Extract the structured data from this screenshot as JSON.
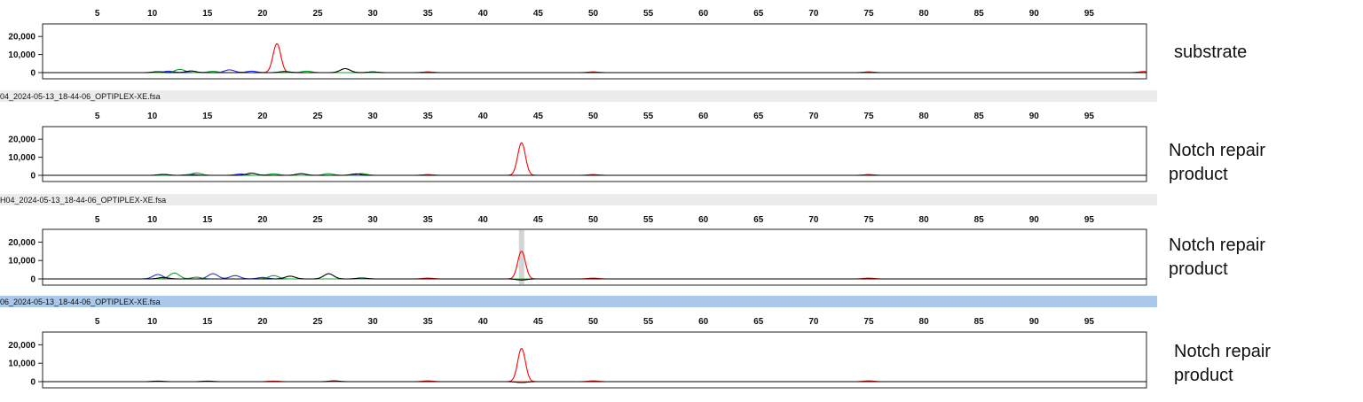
{
  "colors": {
    "baseline": "#e8552e",
    "red_trace": "#ff0000",
    "blue_trace": "#2030e0",
    "green_trace": "#10a030",
    "black_trace": "#000000",
    "selected_bar": "#a9c8ea",
    "plain_bar": "#ececec"
  },
  "chart_data": [
    {
      "type": "line",
      "file_label": "",
      "side_label": "substrate",
      "x_ticks": [
        5,
        10,
        15,
        20,
        25,
        30,
        35,
        40,
        45,
        50,
        55,
        60,
        65,
        70,
        75,
        80,
        85,
        90,
        95
      ],
      "y_ticks": [
        "20,000",
        "10,000",
        "0"
      ],
      "ylim": [
        0,
        25000
      ],
      "series": [
        {
          "color": "red",
          "peaks": [
            [
              21.3,
              16000
            ],
            [
              35,
              400
            ],
            [
              50,
              400
            ],
            [
              75,
              400
            ],
            [
              100,
              600
            ]
          ]
        },
        {
          "color": "blue",
          "peaks": [
            [
              11.5,
              800
            ],
            [
              17,
              1500
            ],
            [
              19,
              800
            ]
          ]
        },
        {
          "color": "green",
          "peaks": [
            [
              12.5,
              1800
            ],
            [
              15.5,
              700
            ],
            [
              24,
              800
            ]
          ]
        },
        {
          "color": "black",
          "peaks": [
            [
              10.5,
              500
            ],
            [
              13.5,
              900
            ],
            [
              22,
              600
            ],
            [
              27.5,
              2200
            ],
            [
              30,
              400
            ]
          ]
        }
      ]
    },
    {
      "type": "line",
      "file_label": "04_2024-05-13_18-44-06_OPTIPLEX-XE.fsa",
      "side_label": "Notch repair\nproduct",
      "x_ticks": [
        5,
        10,
        15,
        20,
        25,
        30,
        35,
        40,
        45,
        50,
        55,
        60,
        65,
        70,
        75,
        80,
        85,
        90,
        95
      ],
      "y_ticks": [
        "20,000",
        "10,000",
        "0"
      ],
      "ylim": [
        0,
        25000
      ],
      "series": [
        {
          "color": "red",
          "peaks": [
            [
              43.5,
              18000
            ],
            [
              35,
              400
            ],
            [
              50,
              400
            ],
            [
              75,
              400
            ]
          ]
        },
        {
          "color": "blue",
          "peaks": [
            [
              13.5,
              500
            ],
            [
              18,
              700
            ]
          ]
        },
        {
          "color": "green",
          "peaks": [
            [
              14,
              1300
            ],
            [
              21,
              800
            ],
            [
              26,
              900
            ],
            [
              29,
              1000
            ]
          ]
        },
        {
          "color": "black",
          "peaks": [
            [
              11,
              500
            ],
            [
              19,
              1200
            ],
            [
              23.5,
              900
            ],
            [
              28.5,
              800
            ]
          ]
        }
      ]
    },
    {
      "type": "line",
      "file_label": "H04_2024-05-13_18-44-06_OPTIPLEX-XE.fsa",
      "side_label": "Notch repair\nproduct",
      "x_ticks": [
        5,
        10,
        15,
        20,
        25,
        30,
        35,
        40,
        45,
        50,
        55,
        60,
        65,
        70,
        75,
        80,
        85,
        90,
        95
      ],
      "y_ticks": [
        "20,000",
        "10,000",
        "0"
      ],
      "ylim": [
        0,
        25000
      ],
      "highlight_x": 43.5,
      "series": [
        {
          "color": "red",
          "peaks": [
            [
              43.5,
              15000
            ],
            [
              35,
              400
            ],
            [
              50,
              400
            ],
            [
              75,
              400
            ]
          ]
        },
        {
          "color": "blue",
          "peaks": [
            [
              10.5,
              2400
            ],
            [
              15.5,
              2800
            ],
            [
              17.5,
              1800
            ],
            [
              20,
              800
            ]
          ]
        },
        {
          "color": "green",
          "peaks": [
            [
              12,
              3200
            ],
            [
              21,
              1800
            ],
            [
              14,
              900
            ]
          ]
        },
        {
          "color": "black",
          "peaks": [
            [
              11,
              800
            ],
            [
              22.5,
              1500
            ],
            [
              26,
              2800
            ],
            [
              29,
              500
            ],
            [
              43.5,
              -600
            ]
          ]
        }
      ]
    },
    {
      "type": "line",
      "file_label": "06_2024-05-13_18-44-06_OPTIPLEX-XE.fsa",
      "side_label": "Notch repair\nproduct",
      "x_ticks": [
        5,
        10,
        15,
        20,
        25,
        30,
        35,
        40,
        45,
        50,
        55,
        60,
        65,
        70,
        75,
        80,
        85,
        90,
        95
      ],
      "y_ticks": [
        "20,000",
        "10,000",
        "0"
      ],
      "ylim": [
        0,
        25000
      ],
      "series": [
        {
          "color": "red",
          "peaks": [
            [
              43.5,
              18000
            ],
            [
              21,
              300
            ],
            [
              35,
              400
            ],
            [
              50,
              400
            ],
            [
              75,
              400
            ]
          ]
        },
        {
          "color": "black",
          "peaks": [
            [
              10.5,
              300
            ],
            [
              15,
              300
            ],
            [
              26.5,
              400
            ],
            [
              43.5,
              -500
            ]
          ]
        }
      ]
    }
  ]
}
